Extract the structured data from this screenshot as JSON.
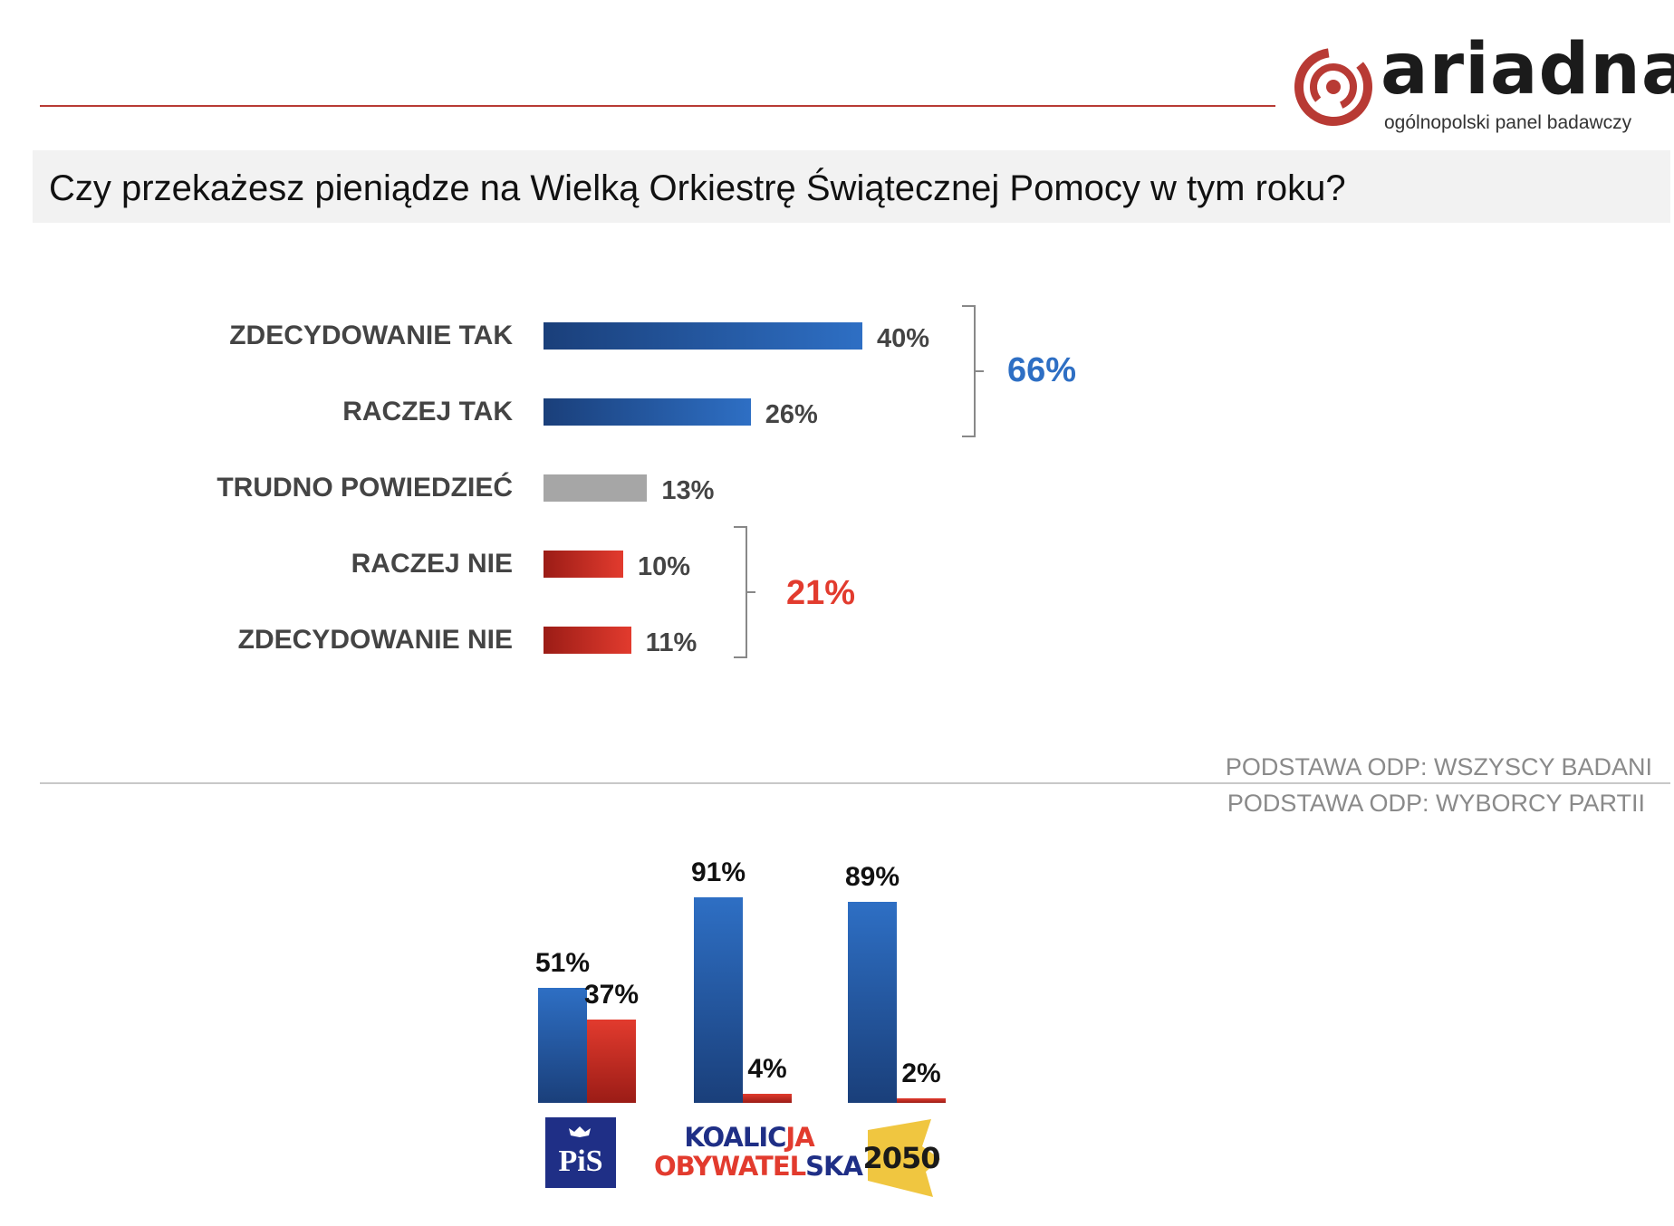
{
  "header": {
    "logo_word": "ariadna",
    "logo_subtitle": "ogólnopolski panel badawczy",
    "question": "Czy przekażesz pieniądze na Wielką Orkiestrę Świątecznej Pomocy w tym roku?"
  },
  "colors": {
    "blue": "#2e6fc4",
    "dark_blue": "#1a3f7a",
    "gray": "#a6a6a6",
    "red": "#e23b2e",
    "dark_red": "#9b1c16",
    "accent_line": "#b83a34"
  },
  "chart_data": [
    {
      "type": "bar",
      "orientation": "horizontal",
      "categories": [
        "ZDECYDOWANIE TAK",
        "RACZEJ TAK",
        "TRUDNO POWIEDZIEĆ",
        "RACZEJ NIE",
        "ZDECYDOWANIE NIE"
      ],
      "values": [
        40,
        26,
        13,
        10,
        11
      ],
      "value_labels": [
        "40%",
        "26%",
        "13%",
        "10%",
        "11%"
      ],
      "bar_colors": [
        "blue",
        "blue",
        "gray",
        "red",
        "red"
      ],
      "groups": [
        {
          "label": "66%",
          "members": [
            "ZDECYDOWANIE TAK",
            "RACZEJ TAK"
          ],
          "color": "blue"
        },
        {
          "label": "21%",
          "members": [
            "RACZEJ NIE",
            "ZDECYDOWANIE NIE"
          ],
          "color": "red"
        }
      ],
      "note": "PODSTAWA ODP: WSZYSCY BADANI"
    },
    {
      "type": "bar",
      "orientation": "vertical",
      "categories": [
        "PiS",
        "KOALICJA OBYWATELSKA",
        "2050"
      ],
      "series": [
        {
          "values": [
            51,
            91,
            89
          ],
          "labels": [
            "51%",
            "91%",
            "89%"
          ],
          "color": "blue"
        },
        {
          "values": [
            37,
            4,
            2
          ],
          "labels": [
            "37%",
            "4%",
            "2%"
          ],
          "color": "red"
        }
      ],
      "note": "PODSTAWA ODP: WYBORCY PARTII"
    }
  ],
  "party_logos": {
    "pis": "PiS",
    "ko_line1_a": "KOALIC",
    "ko_line1_b": "JA",
    "ko_line2_a": "OBYWATEL",
    "ko_line2_b": "SKA",
    "polska2050": "2050"
  }
}
